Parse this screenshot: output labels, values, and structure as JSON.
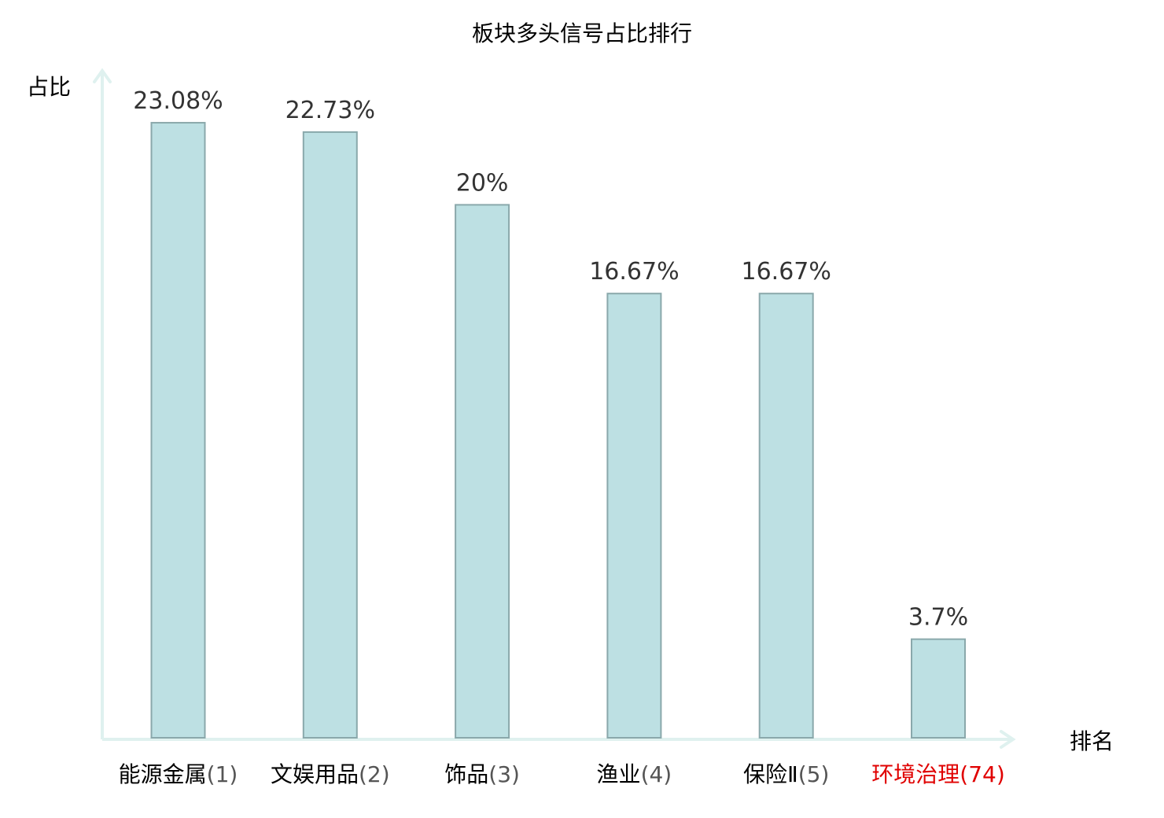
{
  "chart_data": {
    "type": "bar",
    "title": "板块多头信号占比排行",
    "xlabel": "排名",
    "ylabel": "占比",
    "categories": [
      {
        "name": "能源金属",
        "rank": "(1)"
      },
      {
        "name": "文娱用品",
        "rank": "(2)"
      },
      {
        "name": "饰品",
        "rank": "(3)"
      },
      {
        "name": "渔业",
        "rank": "(4)"
      },
      {
        "name": "保险Ⅱ",
        "rank": "(5)"
      },
      {
        "name": "环境治理",
        "rank": "(74)"
      }
    ],
    "values": [
      23.08,
      22.73,
      20,
      16.67,
      16.67,
      3.7
    ],
    "value_labels": [
      "23.08%",
      "22.73%",
      "20%",
      "16.67%",
      "16.67%",
      "3.7%"
    ],
    "ylim": [
      0,
      25
    ],
    "grid": false,
    "highlight_index": 5,
    "colors": {
      "bar_fill": "#bde0e3",
      "bar_stroke": "#8aa8ab",
      "axis": "#dff1ef",
      "value_text": "#333333",
      "label_text": "#000000",
      "rank_text": "#555555",
      "highlight": "#e00000"
    }
  }
}
